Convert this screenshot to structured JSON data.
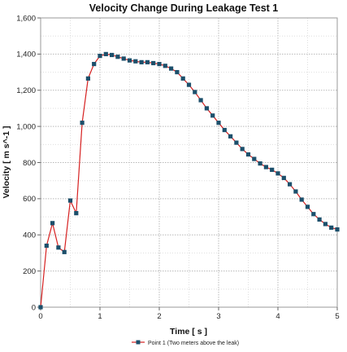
{
  "chart_data": {
    "type": "line",
    "title": "Velocity Change During Leakage Test 1",
    "xlabel": "Time [ s ]",
    "ylabel": "Velocity [ m s^-1 ]",
    "xlim": [
      0,
      5
    ],
    "ylim": [
      0,
      1600
    ],
    "xticks": [
      0,
      1,
      2,
      3,
      4,
      5
    ],
    "yticks": [
      0,
      200,
      400,
      600,
      800,
      1000,
      1200,
      1400,
      1600
    ],
    "ytick_labels": [
      "0",
      "200",
      "400",
      "600",
      "800",
      "1,000",
      "1,200",
      "1,400",
      "1,600"
    ],
    "xtick_labels": [
      "0",
      "1",
      "2",
      "3",
      "4",
      "5"
    ],
    "grid": true,
    "legend_position": "bottom-center",
    "series": [
      {
        "name": "Point 1 (Two meters above the leak)",
        "line_color": "#d62020",
        "marker_color": "#1c4f6b",
        "marker": "square",
        "x": [
          0,
          0.1,
          0.2,
          0.3,
          0.4,
          0.5,
          0.6,
          0.7,
          0.8,
          0.9,
          1.0,
          1.1,
          1.2,
          1.3,
          1.4,
          1.5,
          1.6,
          1.7,
          1.8,
          1.9,
          2.0,
          2.1,
          2.2,
          2.3,
          2.4,
          2.5,
          2.6,
          2.7,
          2.8,
          2.9,
          3.0,
          3.1,
          3.2,
          3.3,
          3.4,
          3.5,
          3.6,
          3.7,
          3.8,
          3.9,
          4.0,
          4.1,
          4.2,
          4.3,
          4.4,
          4.5,
          4.6,
          4.7,
          4.8,
          4.9,
          5.0
        ],
        "y": [
          0,
          340,
          465,
          330,
          305,
          590,
          520,
          1020,
          1265,
          1345,
          1390,
          1400,
          1395,
          1385,
          1375,
          1365,
          1360,
          1355,
          1355,
          1350,
          1345,
          1335,
          1320,
          1300,
          1265,
          1230,
          1190,
          1145,
          1100,
          1060,
          1020,
          980,
          945,
          910,
          875,
          845,
          820,
          795,
          775,
          760,
          740,
          715,
          680,
          640,
          595,
          555,
          515,
          485,
          460,
          440,
          430
        ]
      }
    ]
  }
}
